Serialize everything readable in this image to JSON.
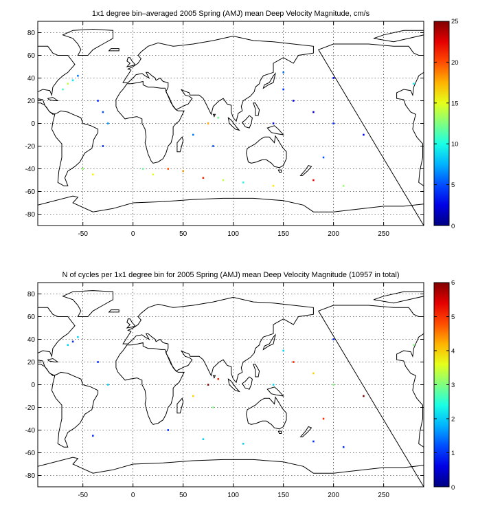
{
  "chart_data": [
    {
      "type": "heatmap",
      "title": "1x1 degree bin–averaged 2005 Spring (AMJ) mean Deep Velocity Magnitude, cm/s",
      "xlim": [
        -95,
        290
      ],
      "ylim": [
        -90,
        90
      ],
      "x_ticks": [
        -50,
        0,
        50,
        100,
        150,
        200,
        250
      ],
      "x_tick_labels": [
        "-50",
        "0",
        "50",
        "100",
        "150",
        "200",
        "250"
      ],
      "y_ticks": [
        80,
        60,
        40,
        20,
        0,
        -20,
        -40,
        -60,
        -80
      ],
      "y_tick_labels": [
        "80",
        "60",
        "40",
        "20",
        "0",
        "-20",
        "-40",
        "-60",
        "-80"
      ],
      "grid": true,
      "colorbar": {
        "colormap": "jet",
        "range": [
          0,
          25
        ],
        "ticks": [
          0,
          5,
          10,
          15,
          20,
          25
        ],
        "tick_labels": [
          "0",
          "5",
          "10",
          "15",
          "20",
          "25"
        ]
      },
      "sample_bins": [
        {
          "lon": -65,
          "lat": 35,
          "value": 14
        },
        {
          "lon": -60,
          "lat": 38,
          "value": 9
        },
        {
          "lon": -55,
          "lat": 42,
          "value": 6
        },
        {
          "lon": -70,
          "lat": 30,
          "value": 11
        },
        {
          "lon": -35,
          "lat": 20,
          "value": 4
        },
        {
          "lon": -30,
          "lat": 10,
          "value": 5
        },
        {
          "lon": -25,
          "lat": 0,
          "value": 7
        },
        {
          "lon": -30,
          "lat": -20,
          "value": 4
        },
        {
          "lon": -40,
          "lat": -45,
          "value": 16
        },
        {
          "lon": -50,
          "lat": -40,
          "value": 13
        },
        {
          "lon": 10,
          "lat": -40,
          "value": 12
        },
        {
          "lon": 20,
          "lat": -45,
          "value": 15
        },
        {
          "lon": 35,
          "lat": -40,
          "value": 20
        },
        {
          "lon": 50,
          "lat": -42,
          "value": 18
        },
        {
          "lon": 70,
          "lat": -48,
          "value": 21
        },
        {
          "lon": 90,
          "lat": -50,
          "value": 14
        },
        {
          "lon": 110,
          "lat": -52,
          "value": 10
        },
        {
          "lon": 140,
          "lat": -55,
          "value": 16
        },
        {
          "lon": 180,
          "lat": -50,
          "value": 22
        },
        {
          "lon": 210,
          "lat": -55,
          "value": 13
        },
        {
          "lon": 75,
          "lat": 0,
          "value": 18
        },
        {
          "lon": 85,
          "lat": 5,
          "value": 12
        },
        {
          "lon": 60,
          "lat": -10,
          "value": 6
        },
        {
          "lon": 80,
          "lat": -20,
          "value": 5
        },
        {
          "lon": 160,
          "lat": 20,
          "value": 3
        },
        {
          "lon": 180,
          "lat": 10,
          "value": 2
        },
        {
          "lon": 200,
          "lat": 0,
          "value": 4
        },
        {
          "lon": 230,
          "lat": -10,
          "value": 3
        },
        {
          "lon": 190,
          "lat": -30,
          "value": 5
        },
        {
          "lon": 150,
          "lat": 30,
          "value": 4
        },
        {
          "lon": 150,
          "lat": 45,
          "value": 6
        },
        {
          "lon": 200,
          "lat": 40,
          "value": 3
        },
        {
          "lon": 280,
          "lat": 35,
          "value": 9
        },
        {
          "lon": 140,
          "lat": 0,
          "value": 3
        }
      ]
    },
    {
      "type": "heatmap",
      "title": "N of cycles per 1x1 degree bin for 2005 Spring (AMJ) mean Deep Velocity Magnitude (10957 in total)",
      "xlim": [
        -95,
        290
      ],
      "ylim": [
        -90,
        90
      ],
      "x_ticks": [
        -50,
        0,
        50,
        100,
        150,
        200,
        250
      ],
      "x_tick_labels": [
        "-50",
        "0",
        "50",
        "100",
        "150",
        "200",
        "250"
      ],
      "y_ticks": [
        80,
        60,
        40,
        20,
        0,
        -20,
        -40,
        -60,
        -80
      ],
      "y_tick_labels": [
        "80",
        "60",
        "40",
        "20",
        "0",
        "-20",
        "-40",
        "-60",
        "-80"
      ],
      "grid": true,
      "colorbar": {
        "colormap": "jet",
        "range": [
          0,
          6
        ],
        "ticks": [
          0,
          1,
          2,
          3,
          4,
          5,
          6
        ],
        "tick_labels": [
          "0",
          "1",
          "2",
          "3",
          "4",
          "5",
          "6"
        ]
      },
      "sample_bins": [
        {
          "lon": -65,
          "lat": 35,
          "value": 2
        },
        {
          "lon": -60,
          "lat": 38,
          "value": 1
        },
        {
          "lon": -55,
          "lat": 42,
          "value": 2
        },
        {
          "lon": -35,
          "lat": 20,
          "value": 1
        },
        {
          "lon": -25,
          "lat": 0,
          "value": 2
        },
        {
          "lon": -40,
          "lat": -45,
          "value": 1
        },
        {
          "lon": 35,
          "lat": -40,
          "value": 1
        },
        {
          "lon": 70,
          "lat": -48,
          "value": 2
        },
        {
          "lon": 75,
          "lat": 0,
          "value": 6
        },
        {
          "lon": 85,
          "lat": 5,
          "value": 5
        },
        {
          "lon": 60,
          "lat": -10,
          "value": 4
        },
        {
          "lon": 80,
          "lat": -20,
          "value": 3
        },
        {
          "lon": 160,
          "lat": 20,
          "value": 5
        },
        {
          "lon": 180,
          "lat": 10,
          "value": 4
        },
        {
          "lon": 200,
          "lat": 0,
          "value": 3
        },
        {
          "lon": 230,
          "lat": -10,
          "value": 6
        },
        {
          "lon": 190,
          "lat": -30,
          "value": 5
        },
        {
          "lon": 150,
          "lat": 30,
          "value": 2
        },
        {
          "lon": 200,
          "lat": 40,
          "value": 1
        },
        {
          "lon": 280,
          "lat": 35,
          "value": 3
        },
        {
          "lon": 140,
          "lat": 0,
          "value": 2
        },
        {
          "lon": 180,
          "lat": -50,
          "value": 1
        },
        {
          "lon": 110,
          "lat": -52,
          "value": 2
        },
        {
          "lon": 210,
          "lat": -55,
          "value": 1
        }
      ]
    }
  ]
}
